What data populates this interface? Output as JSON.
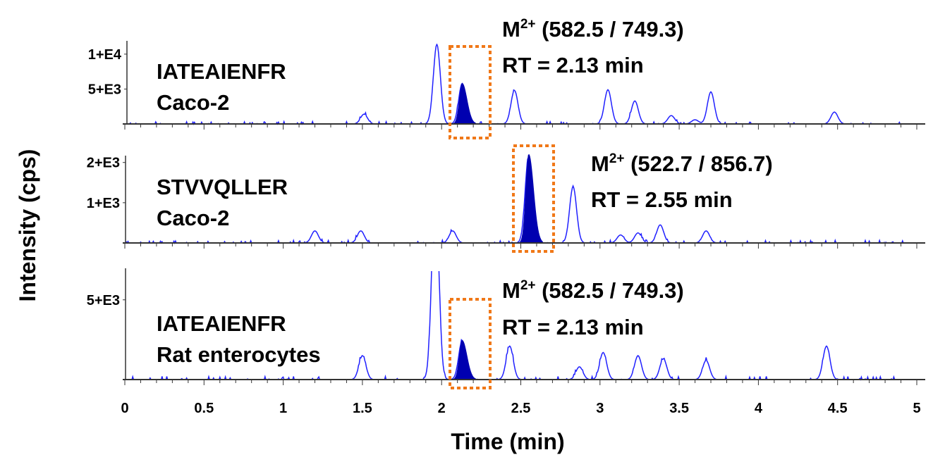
{
  "chart_data": {
    "type": "line",
    "xlabel": "Time (min)",
    "ylabel": "Intensity (cps)",
    "xlim": [
      0,
      5
    ],
    "x_ticks": [
      "0",
      "0.5",
      "1",
      "1.5",
      "2",
      "2.5",
      "3",
      "3.5",
      "4",
      "4.5",
      "5"
    ],
    "colors": {
      "trace": "#2020ff",
      "target_fill": "#0000b0",
      "box": "#f07818"
    },
    "panels": [
      {
        "peptide": "IATEAIENFR",
        "sample": "Caco-2",
        "transition_prefix": "M",
        "transition_sup": "2+",
        "transition": " (582.5 / 749.3)",
        "rt_label": "RT = 2.13 min",
        "y_ticks": [
          {
            "label": "1+E4",
            "value": 10000
          },
          {
            "label": "5+E3",
            "value": 5000
          }
        ],
        "ylim": [
          0,
          11500
        ],
        "target_peak": {
          "rt": 2.13,
          "intensity": 5800
        },
        "peaks": [
          [
            1.51,
            1400
          ],
          [
            1.97,
            11400
          ],
          [
            2.46,
            4800
          ],
          [
            3.05,
            4900
          ],
          [
            3.22,
            3300
          ],
          [
            3.45,
            1200
          ],
          [
            3.6,
            600
          ],
          [
            3.7,
            4600
          ],
          [
            4.48,
            1700
          ]
        ]
      },
      {
        "peptide": "STVVQLLER",
        "sample": "Caco-2",
        "transition_prefix": "M",
        "transition_sup": "2+",
        "transition": " (522.7 / 856.7)",
        "rt_label": "RT = 2.55 min",
        "y_ticks": [
          {
            "label": "2+E3",
            "value": 2000
          },
          {
            "label": "1+E3",
            "value": 1000
          }
        ],
        "ylim": [
          0,
          2100
        ],
        "target_peak": {
          "rt": 2.55,
          "intensity": 2200
        },
        "peaks": [
          [
            1.2,
            300
          ],
          [
            1.49,
            300
          ],
          [
            2.07,
            300
          ],
          [
            2.83,
            1400
          ],
          [
            3.13,
            200
          ],
          [
            3.24,
            250
          ],
          [
            3.38,
            450
          ],
          [
            3.67,
            300
          ]
        ]
      },
      {
        "peptide": "IATEAIENFR",
        "sample": "Rat enterocytes",
        "transition_prefix": "M",
        "transition_sup": "2+",
        "transition": " (582.5 / 749.3)",
        "rt_label": "RT = 2.13 min",
        "y_ticks": [
          {
            "label": "5+E3",
            "value": 5000
          }
        ],
        "ylim": [
          0,
          6800
        ],
        "target_peak": {
          "rt": 2.13,
          "intensity": 2450
        },
        "peaks": [
          [
            1.5,
            1500
          ],
          [
            1.96,
            12000
          ],
          [
            2.43,
            2100
          ],
          [
            2.87,
            800
          ],
          [
            3.02,
            1700
          ],
          [
            3.24,
            1500
          ],
          [
            3.4,
            1300
          ],
          [
            3.67,
            1200
          ],
          [
            4.43,
            2100
          ]
        ]
      }
    ]
  }
}
